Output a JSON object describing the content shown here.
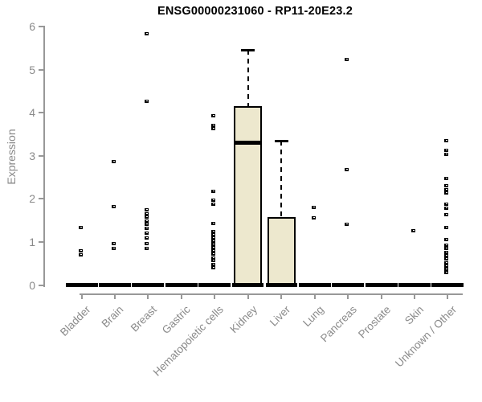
{
  "header": {
    "title": "ENSG00000231060 - RP11-20E23.2"
  },
  "chart_data": {
    "type": "boxplot",
    "title": "ENSG00000231060 - RP11-20E23.2",
    "xlabel": "",
    "ylabel": "Expression",
    "ylim": [
      0,
      6
    ],
    "y_ticks": [
      0,
      1,
      2,
      3,
      4,
      5,
      6
    ],
    "grid": false,
    "legend": false,
    "categories": [
      "Bladder",
      "Brain",
      "Breast",
      "Gastric",
      "Hematopoietic cells",
      "Kidney",
      "Liver",
      "Lung",
      "Pancreas",
      "Prostate",
      "Skin",
      "Unknown / Other"
    ],
    "boxes": [
      {
        "category": "Bladder",
        "q1": 0,
        "median": 0,
        "q3": 0,
        "whisker_low": 0,
        "whisker_high": 0,
        "outliers": [
          1.33,
          0.8,
          0.7
        ]
      },
      {
        "category": "Brain",
        "q1": 0,
        "median": 0,
        "q3": 0,
        "whisker_low": 0,
        "whisker_high": 0,
        "outliers": [
          2.87,
          1.82,
          0.96,
          0.84
        ]
      },
      {
        "category": "Breast",
        "q1": 0,
        "median": 0,
        "q3": 0,
        "whisker_low": 0,
        "whisker_high": 0,
        "outliers": [
          5.83,
          4.27,
          1.74,
          1.65,
          1.57,
          1.49,
          1.41,
          1.31,
          1.2,
          1.09,
          0.97,
          0.84
        ]
      },
      {
        "category": "Gastric",
        "q1": 0,
        "median": 0,
        "q3": 0,
        "whisker_low": 0,
        "whisker_high": 0,
        "outliers": []
      },
      {
        "category": "Hematopoietic cells",
        "q1": 0,
        "median": 0,
        "q3": 0,
        "whisker_low": 0,
        "whisker_high": 0,
        "outliers": [
          3.92,
          3.71,
          3.63,
          2.18,
          1.96,
          1.87,
          1.42,
          1.24,
          1.16,
          1.09,
          1.01,
          0.94,
          0.86,
          0.79,
          0.71,
          0.63,
          0.56,
          0.48,
          0.4
        ]
      },
      {
        "category": "Kidney",
        "q1": 0,
        "median": 3.3,
        "q3": 4.15,
        "whisker_low": 0,
        "whisker_high": 5.45,
        "outliers": []
      },
      {
        "category": "Liver",
        "q1": 0,
        "median": 0,
        "q3": 1.58,
        "whisker_low": 0,
        "whisker_high": 3.35,
        "outliers": []
      },
      {
        "category": "Lung",
        "q1": 0,
        "median": 0,
        "q3": 0,
        "whisker_low": 0,
        "whisker_high": 0,
        "outliers": [
          1.81,
          1.56
        ]
      },
      {
        "category": "Pancreas",
        "q1": 0,
        "median": 0,
        "q3": 0,
        "whisker_low": 0,
        "whisker_high": 0,
        "outliers": [
          5.23,
          2.67,
          1.41
        ]
      },
      {
        "category": "Prostate",
        "q1": 0,
        "median": 0,
        "q3": 0,
        "whisker_low": 0,
        "whisker_high": 0,
        "outliers": []
      },
      {
        "category": "Skin",
        "q1": 0,
        "median": 0,
        "q3": 0,
        "whisker_low": 0,
        "whisker_high": 0,
        "outliers": [
          1.26
        ]
      },
      {
        "category": "Unknown / Other",
        "q1": 0,
        "median": 0,
        "q3": 0,
        "whisker_low": 0,
        "whisker_high": 0,
        "outliers": [
          3.35,
          3.12,
          3.03,
          2.48,
          2.3,
          2.21,
          2.13,
          1.88,
          1.79,
          1.64,
          1.33,
          1.06,
          0.93,
          0.84,
          0.76,
          0.68,
          0.6,
          0.52,
          0.44,
          0.36,
          0.28
        ]
      }
    ],
    "colors": {
      "box_fill": "#EDE8CE",
      "box_border": "#000000",
      "marker": "#000000",
      "axis": "#989898",
      "label_text": "#8a8a8a",
      "title_text": "#000000"
    }
  }
}
